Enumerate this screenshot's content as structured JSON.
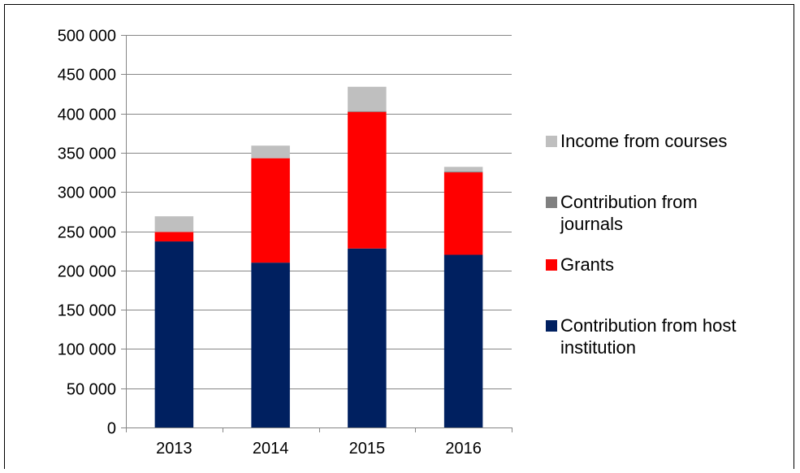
{
  "chart_data": {
    "type": "bar",
    "stacked": true,
    "categories": [
      "2013",
      "2014",
      "2015",
      "2016"
    ],
    "series": [
      {
        "name": "Contribution from host institution",
        "color": "#002060",
        "values": [
          237000,
          210000,
          228000,
          220000
        ]
      },
      {
        "name": "Grants",
        "color": "#ff0000",
        "values": [
          12000,
          133000,
          174000,
          105000
        ]
      },
      {
        "name": "Contribution from journals",
        "color": "#808080",
        "values": [
          0,
          0,
          1000,
          1000
        ]
      },
      {
        "name": "Income from courses",
        "color": "#bfbfbf",
        "values": [
          20000,
          16000,
          31000,
          6000
        ]
      }
    ],
    "ylim": [
      0,
      500000
    ],
    "yticks": [
      0,
      50000,
      100000,
      150000,
      200000,
      250000,
      300000,
      350000,
      400000,
      450000,
      500000
    ],
    "ytick_labels": [
      "0",
      "50 000",
      "100 000",
      "150 000",
      "200 000",
      "250 000",
      "300 000",
      "350 000",
      "400 000",
      "450 000",
      "500 000"
    ],
    "grid": true,
    "legend_position": "right"
  },
  "legend": {
    "items": [
      {
        "label": "Income from courses",
        "color": "#bfbfbf"
      },
      {
        "label": "Contribution from journals",
        "color": "#808080"
      },
      {
        "label": "Grants",
        "color": "#ff0000"
      },
      {
        "label": "Contribution from host institution",
        "color": "#002060"
      }
    ]
  }
}
